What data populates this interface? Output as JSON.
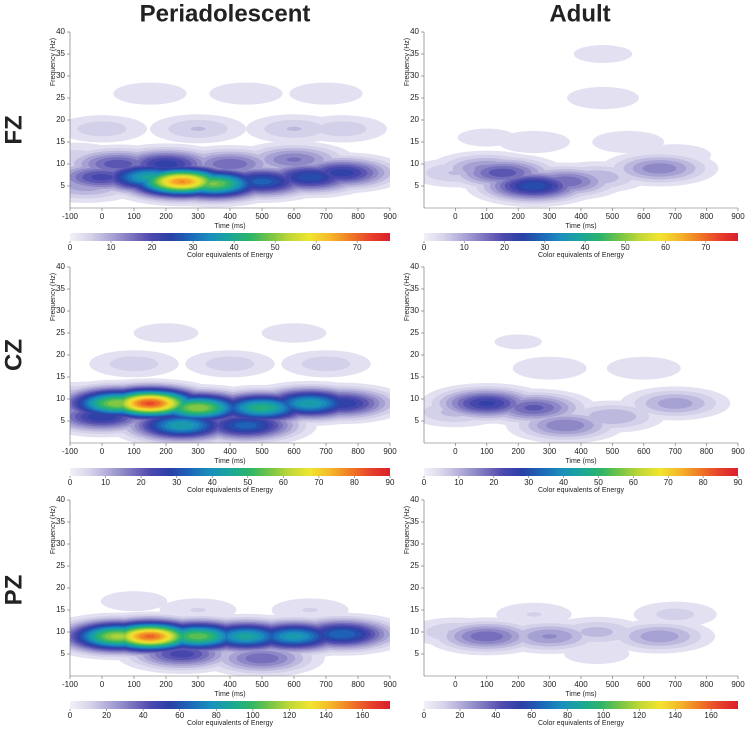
{
  "column_titles": [
    "Periadolescent",
    "Adult"
  ],
  "row_labels": [
    "FZ",
    "CZ",
    "PZ"
  ],
  "chart_data": [
    {
      "type": "contour",
      "x_label": "Time (ms)",
      "y_label": "Frequency (Hz)",
      "xlim": [
        -100,
        900
      ],
      "xticks": [
        -100,
        0,
        100,
        200,
        300,
        400,
        500,
        600,
        700,
        800,
        900
      ],
      "ylim": [
        0,
        40
      ],
      "yticks": [
        5,
        10,
        15,
        20,
        25,
        30,
        35,
        40
      ],
      "x": [
        250,
        350,
        150,
        500,
        650,
        750,
        0,
        50,
        200,
        400,
        600,
        -50,
        300,
        0,
        600,
        750,
        150,
        450,
        700,
        -80
      ],
      "y": [
        6,
        5.5,
        7,
        6,
        7,
        8,
        7,
        10,
        10,
        10,
        11,
        5,
        18,
        18,
        18,
        18,
        26,
        26,
        26,
        12
      ],
      "values": [
        68,
        50,
        40,
        30,
        28,
        25,
        22,
        20,
        25,
        18,
        16,
        12,
        8,
        7,
        8,
        7,
        5,
        5,
        5,
        6
      ],
      "colorbar": {
        "label": "Color equivalents of Energy",
        "lim": [
          0,
          78
        ],
        "ticks": [
          0,
          10,
          20,
          30,
          40,
          50,
          60,
          70
        ]
      }
    },
    {
      "type": "contour",
      "x_label": "Time (ms)",
      "y_label": "Frequency (Hz)",
      "xlim": [
        -100,
        900
      ],
      "xticks": [
        0,
        100,
        200,
        300,
        400,
        500,
        600,
        700,
        800,
        900
      ],
      "ylim": [
        0,
        40
      ],
      "yticks": [
        5,
        10,
        15,
        20,
        25,
        30,
        35,
        40
      ],
      "x": [
        250,
        150,
        350,
        650,
        100,
        450,
        0,
        250,
        550,
        470,
        470,
        700,
        100
      ],
      "y": [
        5,
        8,
        6,
        9,
        9,
        7,
        8,
        15,
        15,
        25,
        35,
        12,
        16
      ],
      "values": [
        28,
        20,
        18,
        15,
        14,
        10,
        8,
        5,
        5,
        5,
        4,
        5,
        4
      ],
      "colorbar": {
        "label": "Color equivalents of Energy",
        "lim": [
          0,
          78
        ],
        "ticks": [
          0,
          10,
          20,
          30,
          40,
          50,
          60,
          70
        ]
      }
    },
    {
      "type": "contour",
      "x_label": "Time (ms)",
      "y_label": "Frequency (Hz)",
      "xlim": [
        -100,
        900
      ],
      "xticks": [
        -100,
        0,
        100,
        200,
        300,
        400,
        500,
        600,
        700,
        800,
        900
      ],
      "ylim": [
        0,
        40
      ],
      "yticks": [
        5,
        10,
        15,
        20,
        25,
        30,
        35,
        40
      ],
      "x": [
        150,
        50,
        300,
        500,
        650,
        250,
        450,
        0,
        750,
        100,
        400,
        700,
        200,
        600,
        -50
      ],
      "y": [
        9,
        9,
        8,
        8,
        9,
        4,
        4,
        6,
        9,
        18,
        18,
        18,
        25,
        25,
        10
      ],
      "values": [
        85,
        60,
        60,
        50,
        45,
        45,
        35,
        30,
        30,
        8,
        8,
        8,
        5,
        5,
        15
      ],
      "colorbar": {
        "label": "Color equivalents of Energy",
        "lim": [
          0,
          90
        ],
        "ticks": [
          0,
          10,
          20,
          30,
          40,
          50,
          60,
          70,
          80,
          90
        ]
      }
    },
    {
      "type": "contour",
      "x_label": "Time (ms)",
      "y_label": "Frequency (Hz)",
      "xlim": [
        -100,
        900
      ],
      "xticks": [
        0,
        100,
        200,
        300,
        400,
        500,
        600,
        700,
        800,
        900
      ],
      "ylim": [
        0,
        40
      ],
      "yticks": [
        5,
        10,
        15,
        20,
        25,
        30,
        35,
        40
      ],
      "x": [
        100,
        250,
        350,
        500,
        700,
        0,
        300,
        600,
        200
      ],
      "y": [
        9,
        8,
        4,
        6,
        9,
        7,
        17,
        17,
        23
      ],
      "values": [
        28,
        22,
        18,
        12,
        14,
        10,
        6,
        6,
        4
      ],
      "colorbar": {
        "label": "Color equivalents of Energy",
        "lim": [
          0,
          90
        ],
        "ticks": [
          0,
          10,
          20,
          30,
          40,
          50,
          60,
          70,
          80,
          90
        ]
      }
    },
    {
      "type": "contour",
      "x_label": "Time (ms)",
      "y_label": "Frequency (Hz)",
      "xlim": [
        -100,
        900
      ],
      "xticks": [
        -100,
        0,
        100,
        200,
        300,
        400,
        500,
        600,
        700,
        800,
        900
      ],
      "ylim": [
        0,
        40
      ],
      "yticks": [
        5,
        10,
        15,
        20,
        25,
        30,
        35,
        40
      ],
      "x": [
        150,
        50,
        300,
        450,
        600,
        750,
        250,
        500,
        0,
        300,
        650,
        100
      ],
      "y": [
        9,
        9,
        9,
        9,
        9,
        9.5,
        5,
        4,
        9,
        15,
        15,
        17
      ],
      "values": [
        160,
        120,
        110,
        90,
        85,
        70,
        50,
        40,
        60,
        12,
        12,
        10
      ],
      "colorbar": {
        "label": "Color equivalents of Energy",
        "lim": [
          0,
          175
        ],
        "ticks": [
          0,
          20,
          40,
          60,
          80,
          100,
          120,
          140,
          160
        ]
      }
    },
    {
      "type": "contour",
      "x_label": "Time (ms)",
      "y_label": "Frequency (Hz)",
      "xlim": [
        -100,
        900
      ],
      "xticks": [
        0,
        100,
        200,
        300,
        400,
        500,
        600,
        700,
        800,
        900
      ],
      "ylim": [
        0,
        40
      ],
      "yticks": [
        5,
        10,
        15,
        20,
        25,
        30,
        35,
        40
      ],
      "x": [
        100,
        300,
        650,
        450,
        0,
        250,
        700,
        450
      ],
      "y": [
        9,
        9,
        9,
        10,
        10,
        14,
        14,
        5
      ],
      "values": [
        40,
        30,
        28,
        20,
        18,
        12,
        14,
        10
      ],
      "colorbar": {
        "label": "Color equivalents of Energy",
        "lim": [
          0,
          175
        ],
        "ticks": [
          0,
          20,
          40,
          60,
          80,
          100,
          120,
          140,
          160
        ]
      }
    }
  ],
  "colors": [
    "#f2f1f8",
    "#d6d3ea",
    "#aca7d6",
    "#7f78c0",
    "#4f4aae",
    "#2a3fa6",
    "#1d66b8",
    "#1a8fbd",
    "#1aa69a",
    "#2cb56a",
    "#76c447",
    "#c0d838",
    "#f1e52f",
    "#f5b82a",
    "#ef7d25",
    "#e8432a",
    "#d91f2b"
  ]
}
